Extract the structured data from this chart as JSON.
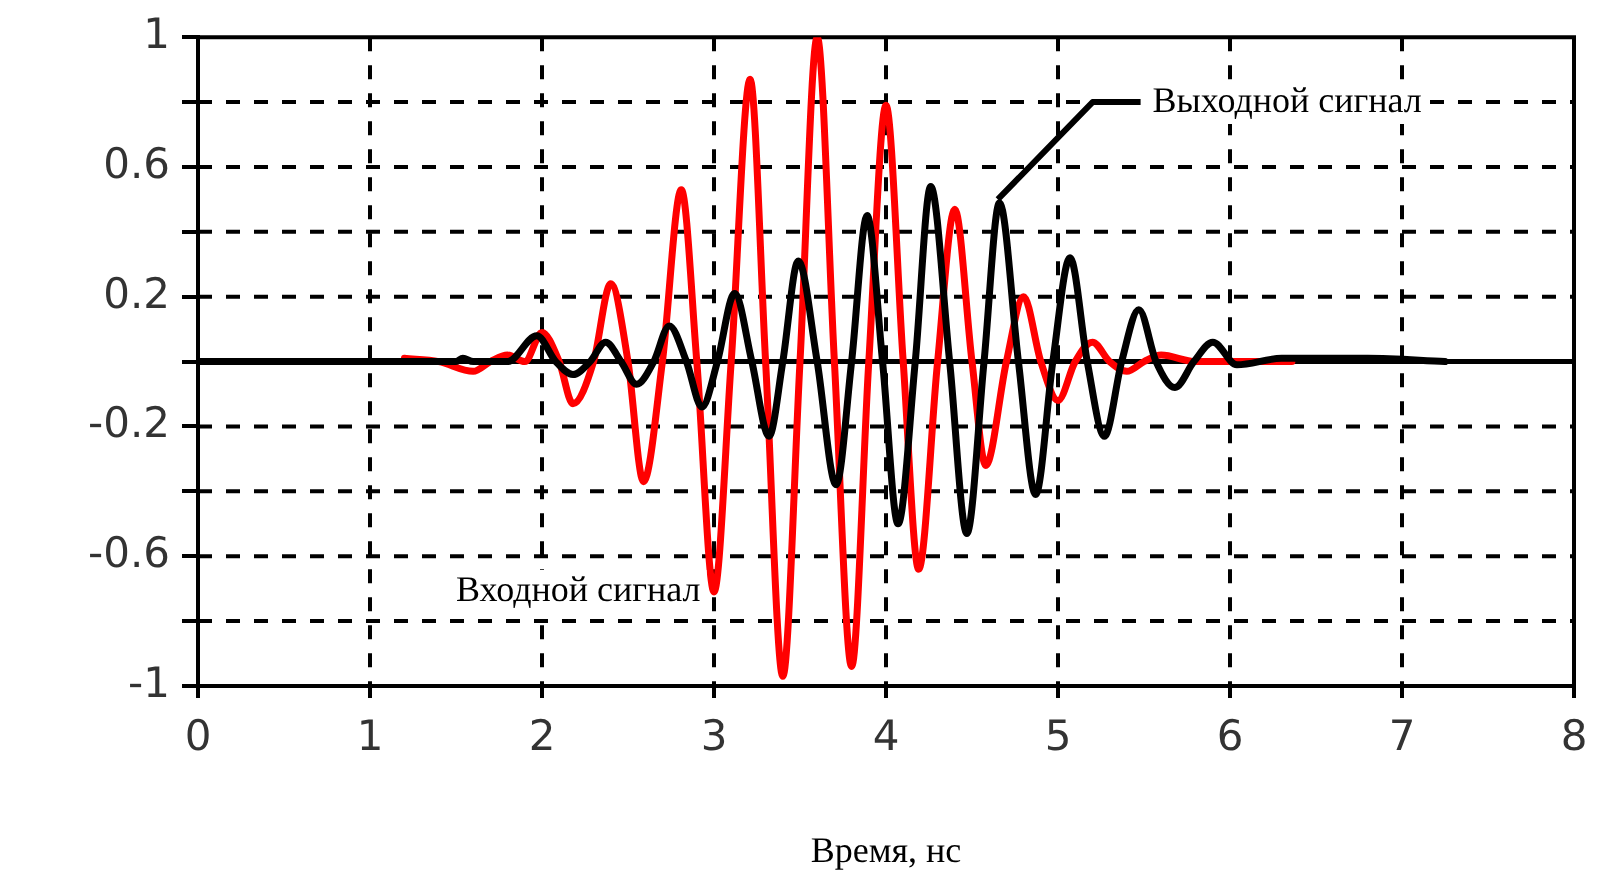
{
  "chart_data": {
    "type": "line",
    "xlabel": "Время, нс",
    "xlim": [
      0,
      8
    ],
    "xticks": [
      0,
      1,
      2,
      3,
      4,
      5,
      6,
      7,
      8
    ],
    "ylim": [
      -1,
      1
    ],
    "yticks": [
      -1,
      {
        "value": -0.8,
        "label": null
      },
      -0.6,
      {
        "value": -0.4,
        "label": null
      },
      -0.2,
      {
        "value": 0,
        "label": null
      },
      0.2,
      {
        "value": 0.4,
        "label": null
      },
      0.6,
      {
        "value": 0.8,
        "label": null
      },
      1
    ],
    "grid": true,
    "legend": false,
    "line_style": "solid",
    "marker": "none",
    "series": [
      {
        "name": "Входной сигнал",
        "color": "#ff0000",
        "x": [
          1.2,
          1.4,
          1.6,
          1.7,
          1.8,
          1.9,
          2.0,
          2.1,
          2.18,
          2.3,
          2.4,
          2.5,
          2.59,
          2.7,
          2.81,
          2.9,
          3.0,
          3.1,
          3.21,
          3.3,
          3.4,
          3.5,
          3.6,
          3.7,
          3.8,
          3.9,
          4.0,
          4.1,
          4.19,
          4.3,
          4.4,
          4.5,
          4.58,
          4.7,
          4.8,
          4.9,
          5.0,
          5.1,
          5.2,
          5.3,
          5.4,
          5.5,
          5.6,
          5.8,
          6.0,
          6.36
        ],
        "values": [
          0.01,
          0,
          -0.03,
          0,
          0.02,
          0,
          0.09,
          0,
          -0.13,
          0,
          0.24,
          0,
          -0.37,
          0,
          0.53,
          0,
          -0.71,
          0,
          0.87,
          0,
          -0.97,
          0,
          1.0,
          0,
          -0.94,
          0,
          0.79,
          0,
          -0.64,
          0,
          0.47,
          0,
          -0.32,
          0,
          0.2,
          0,
          -0.12,
          0,
          0.06,
          0,
          -0.03,
          0,
          0.02,
          0,
          0,
          0
        ]
      },
      {
        "name": "Выходной сигнал",
        "color": "#000000",
        "x": [
          0,
          1.5,
          1.54,
          1.6,
          1.8,
          1.97,
          2.08,
          2.18,
          2.28,
          2.37,
          2.46,
          2.55,
          2.65,
          2.74,
          2.84,
          2.93,
          3.02,
          3.12,
          3.22,
          3.32,
          3.4,
          3.49,
          3.6,
          3.71,
          3.8,
          3.89,
          3.98,
          4.07,
          4.17,
          4.26,
          4.37,
          4.47,
          4.57,
          4.66,
          4.77,
          4.87,
          4.97,
          5.07,
          5.17,
          5.27,
          5.37,
          5.47,
          5.57,
          5.68,
          5.79,
          5.9,
          6.04,
          6.3,
          6.8,
          7.25
        ],
        "values": [
          0,
          0,
          0.01,
          0,
          0,
          0.08,
          0,
          -0.04,
          0,
          0.06,
          0,
          -0.07,
          0,
          0.11,
          0,
          -0.14,
          0,
          0.21,
          0,
          -0.23,
          0,
          0.31,
          0,
          -0.38,
          0,
          0.45,
          0,
          -0.5,
          0,
          0.54,
          0,
          -0.53,
          0,
          0.49,
          0,
          -0.41,
          0,
          0.32,
          0,
          -0.23,
          0,
          0.16,
          0,
          -0.08,
          0,
          0.06,
          -0.01,
          0.01,
          0.01,
          0
        ]
      }
    ]
  }
}
